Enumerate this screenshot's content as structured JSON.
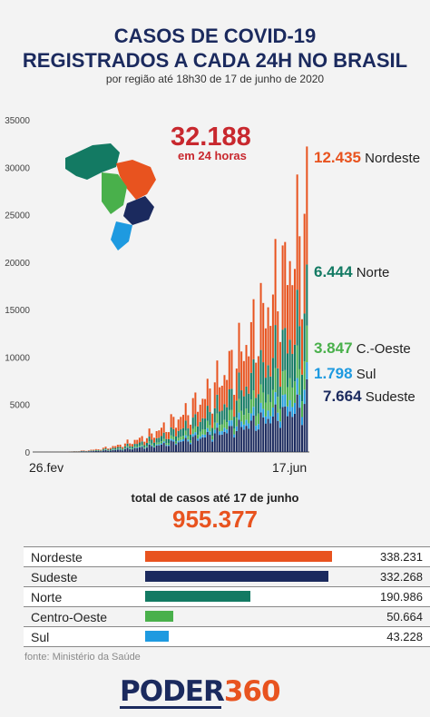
{
  "header": {
    "title_line1": "CASOS DE COVID-19",
    "title_line2": "REGISTRADOS A CADA 24H NO BRASIL",
    "subtitle": "por região até 18h30 de 17 de junho de 2020"
  },
  "highlight": {
    "value": "32.188",
    "label": "em 24 horas"
  },
  "chart_data": {
    "type": "bar",
    "stacked": true,
    "x_start": "26.fev",
    "x_end": "17.jun",
    "ylim": [
      0,
      35000
    ],
    "yticks": [
      "0",
      "5000",
      "10000",
      "15000",
      "20000",
      "25000",
      "30000",
      "35000"
    ],
    "grid": false,
    "days": 113,
    "series": [
      {
        "name": "Sudeste",
        "color": "#1b2a5e",
        "last": 7664
      },
      {
        "name": "Sul",
        "color": "#1e9ae0",
        "last": 1798
      },
      {
        "name": "C.-Oeste",
        "color": "#49b04b",
        "last": 3847
      },
      {
        "name": "Norte",
        "color": "#137a63",
        "last": 6444
      },
      {
        "name": "Nordeste",
        "color": "#e8531f",
        "last": 12435
      }
    ]
  },
  "callouts": [
    {
      "value": "12.435",
      "name": "Nordeste",
      "color": "#e8531f"
    },
    {
      "value": "6.444",
      "name": "Norte",
      "color": "#137a63"
    },
    {
      "value": "3.847",
      "name": "C.-Oeste",
      "color": "#49b04b"
    },
    {
      "value": "1.798",
      "name": "Sul",
      "color": "#1e9ae0"
    },
    {
      "value": "7.664",
      "name": "Sudeste",
      "color": "#1b2a5e"
    }
  ],
  "totals": {
    "label": "total de casos até 17 de junho",
    "value": "955.377",
    "rows": [
      {
        "name": "Nordeste",
        "value": "338.231",
        "n": 338231,
        "color": "#e8531f"
      },
      {
        "name": "Sudeste",
        "value": "332.268",
        "n": 332268,
        "color": "#1b2a5e"
      },
      {
        "name": "Norte",
        "value": "190.986",
        "n": 190986,
        "color": "#137a63"
      },
      {
        "name": "Centro-Oeste",
        "value": "50.664",
        "n": 50664,
        "color": "#49b04b"
      },
      {
        "name": "Sul",
        "value": "43.228",
        "n": 43228,
        "color": "#1e9ae0"
      }
    ]
  },
  "source": "fonte: Ministério da Saúde",
  "logo": {
    "part1": "PODER",
    "part2": "360"
  }
}
